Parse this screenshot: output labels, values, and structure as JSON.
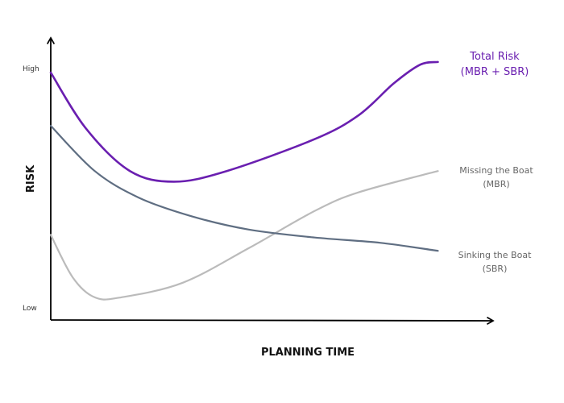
{
  "chart_data": {
    "type": "line",
    "xlabel": "PLANNING TIME",
    "ylabel": "RISK",
    "y_ticks": [
      "High",
      "Low"
    ],
    "grid": false,
    "legend": "inline labels at right end of each line",
    "series": [
      {
        "key": "total",
        "name": [
          "Total Risk",
          "(MBR + SBR)"
        ],
        "color": "#6a1fb0",
        "points": [
          [
            0,
            0.93
          ],
          [
            8,
            0.72
          ],
          [
            18,
            0.56
          ],
          [
            28,
            0.52
          ],
          [
            40,
            0.56
          ],
          [
            60,
            0.68
          ],
          [
            70,
            0.77
          ],
          [
            78,
            0.89
          ],
          [
            84,
            0.96
          ],
          [
            88,
            0.97
          ]
        ]
      },
      {
        "key": "mbr",
        "name": [
          "Missing the Boat",
          "(MBR)"
        ],
        "color": "#bbbbbb",
        "points": [
          [
            0,
            0.32
          ],
          [
            5,
            0.16
          ],
          [
            10,
            0.085
          ],
          [
            16,
            0.085
          ],
          [
            30,
            0.14
          ],
          [
            45,
            0.27
          ],
          [
            60,
            0.41
          ],
          [
            70,
            0.48
          ],
          [
            88,
            0.56
          ]
        ]
      },
      {
        "key": "sbr",
        "name": [
          "Sinking the Boat",
          "(SBR)"
        ],
        "color": "#5f6e82",
        "points": [
          [
            0,
            0.73
          ],
          [
            10,
            0.56
          ],
          [
            20,
            0.46
          ],
          [
            32,
            0.39
          ],
          [
            45,
            0.34
          ],
          [
            60,
            0.31
          ],
          [
            75,
            0.29
          ],
          [
            88,
            0.26
          ]
        ]
      }
    ]
  }
}
